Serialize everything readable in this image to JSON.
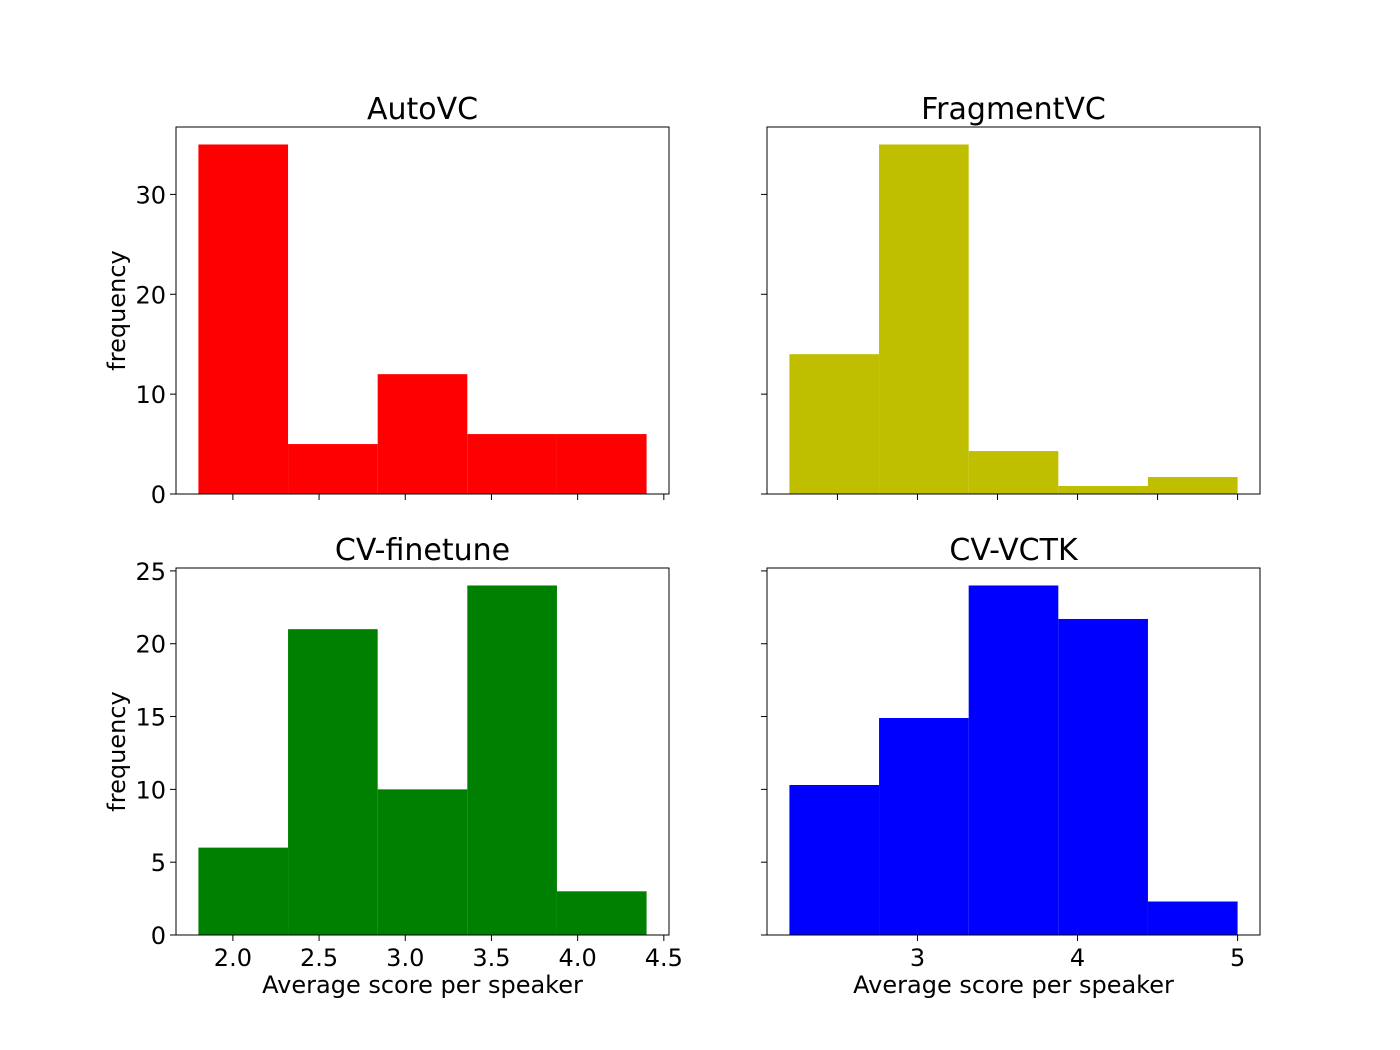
{
  "chart_data": [
    {
      "type": "bar",
      "title": "AutoVC",
      "color": "#ff0000",
      "bin_edges": [
        1.8,
        2.32,
        2.84,
        3.36,
        3.88,
        4.4
      ],
      "values": [
        35,
        5,
        12,
        6,
        6
      ],
      "ylim": [
        0,
        36.75
      ],
      "yticks": [
        0,
        10,
        20,
        30
      ],
      "ytick_labels": [
        "0",
        "10",
        "20",
        "30"
      ],
      "xlim": [
        1.67,
        4.53
      ],
      "xticks": [
        2.0,
        2.5,
        3.0,
        3.5,
        4.0,
        4.5
      ],
      "xtick_labels": [],
      "ylabel": "frequency",
      "xlabel": "",
      "grid": false
    },
    {
      "type": "bar",
      "title": "FragmentVC",
      "color": "#bfbf00",
      "bin_edges": [
        2.2,
        2.76,
        3.32,
        3.88,
        4.44,
        5.0
      ],
      "values": [
        14,
        35,
        4.3,
        0.8,
        1.7
      ],
      "ylim": [
        0,
        36.75
      ],
      "yticks": [
        0,
        10,
        20,
        30
      ],
      "ytick_labels": [],
      "xlim": [
        2.06,
        5.14
      ],
      "xticks": [
        2.5,
        3,
        3.5,
        4,
        4.5,
        5
      ],
      "xtick_labels": [],
      "ylabel": "",
      "xlabel": "",
      "grid": false
    },
    {
      "type": "bar",
      "title": "CV-finetune",
      "color": "#008000",
      "bin_edges": [
        1.8,
        2.32,
        2.84,
        3.36,
        3.88,
        4.4
      ],
      "values": [
        6,
        21,
        10,
        24,
        3
      ],
      "ylim": [
        0,
        25.2
      ],
      "yticks": [
        0,
        5,
        10,
        15,
        20,
        25
      ],
      "ytick_labels": [
        "0",
        "5",
        "10",
        "15",
        "20",
        "25"
      ],
      "xlim": [
        1.67,
        4.53
      ],
      "xticks": [
        2.0,
        2.5,
        3.0,
        3.5,
        4.0,
        4.5
      ],
      "xtick_labels": [
        "2.0",
        "2.5",
        "3.0",
        "3.5",
        "4.0",
        "4.5"
      ],
      "ylabel": "frequency",
      "xlabel": "Average score per speaker",
      "grid": false
    },
    {
      "type": "bar",
      "title": "CV-VCTK",
      "color": "#0000ff",
      "bin_edges": [
        2.2,
        2.76,
        3.32,
        3.88,
        4.44,
        5.0
      ],
      "values": [
        10.3,
        14.9,
        24,
        21.7,
        2.3
      ],
      "ylim": [
        0,
        25.2
      ],
      "yticks": [
        0,
        5,
        10,
        15,
        20,
        25
      ],
      "ytick_labels": [],
      "xlim": [
        2.06,
        5.14
      ],
      "xticks": [
        3,
        4,
        5
      ],
      "xtick_labels": [
        "3",
        "4",
        "5"
      ],
      "ylabel": "",
      "xlabel": "Average score per speaker",
      "grid": false
    }
  ]
}
